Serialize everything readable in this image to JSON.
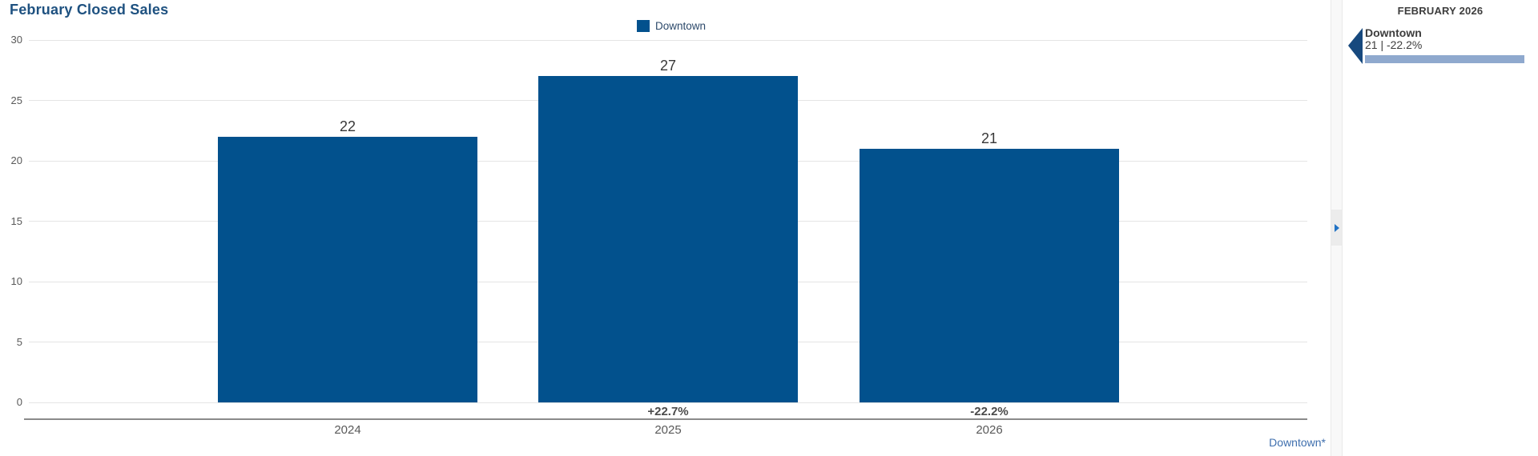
{
  "chart": {
    "title": "February Closed Sales",
    "legend": {
      "label": "Downtown",
      "color": "#02518D"
    }
  },
  "chart_data": {
    "type": "bar",
    "title": "February Closed Sales",
    "categories": [
      "2024",
      "2025",
      "2026"
    ],
    "series": [
      {
        "name": "Downtown",
        "values": [
          22,
          27,
          21
        ]
      }
    ],
    "value_labels": [
      "22",
      "27",
      "21"
    ],
    "pct_change_labels": [
      "",
      "+22.7%",
      "-22.2%"
    ],
    "ylim": [
      0,
      30
    ],
    "yticks": [
      0,
      5,
      10,
      15,
      20,
      25,
      30
    ],
    "grid": "horizontal-only",
    "legend_position": "top-center",
    "bar_color": "#02518D",
    "gridline_color": "#e4e4e4",
    "axis_line_color": "#8a8a8a"
  },
  "footer": {
    "link_label": "Downtown*",
    "link_color": "#3F6FAE"
  },
  "divider": {
    "arrow_icon": "chevron-right",
    "arrow_color": "#2273c4"
  },
  "side_panel": {
    "heading": "FEBRUARY 2026",
    "entries": [
      {
        "name": "Downtown",
        "value": "21",
        "change": "-22.2%",
        "stat_text": "21 | -22.2%",
        "bar_color": "#8FA9CE",
        "marker_color": "#17497E"
      }
    ]
  }
}
